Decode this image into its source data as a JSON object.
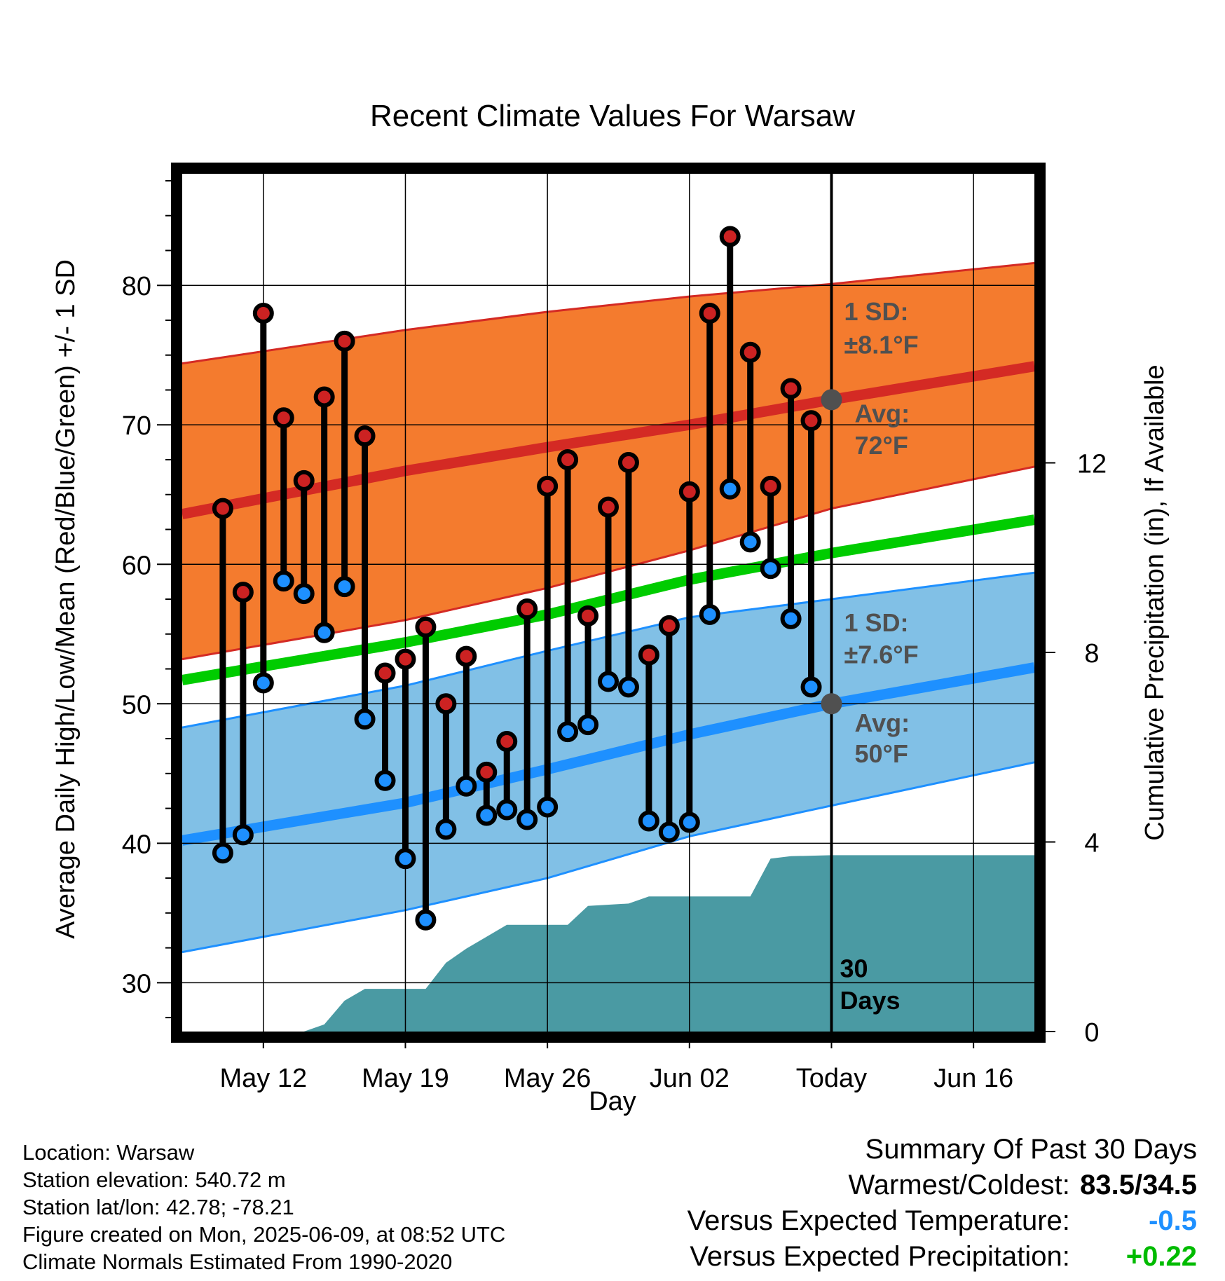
{
  "chart_data": {
    "type": "line",
    "title": "Recent Climate Values For Warsaw",
    "xlabel": "Day",
    "ylabel": "Average Daily High/Low/Mean (Red/Blue/Green) +/- 1 SD",
    "y2label": "Cumulative Precipitation (in), If Available",
    "xlim": [
      "2025-05-08",
      "2025-06-19"
    ],
    "ylim": [
      26.5,
      88
    ],
    "y2lim": [
      0,
      18.1
    ],
    "x_ticks": [
      {
        "date": "2025-05-12",
        "label": "May 12"
      },
      {
        "date": "2025-05-19",
        "label": "May 19"
      },
      {
        "date": "2025-05-26",
        "label": "May 26"
      },
      {
        "date": "2025-06-02",
        "label": "Jun 02"
      },
      {
        "date": "2025-06-09",
        "label": "Today"
      },
      {
        "date": "2025-06-16",
        "label": "Jun 16"
      }
    ],
    "y_ticks": [
      30,
      40,
      50,
      60,
      70,
      80
    ],
    "y2_ticks": [
      0,
      4,
      8,
      12
    ],
    "grid": true,
    "today": "2025-06-09",
    "today_label": [
      "30",
      "Days"
    ],
    "normals": {
      "x": [
        "2025-05-08",
        "2025-05-19",
        "2025-05-26",
        "2025-06-02",
        "2025-06-09",
        "2025-06-19"
      ],
      "avg_high": [
        63.6,
        66.7,
        68.4,
        70.0,
        71.8,
        74.2
      ],
      "high_upper": [
        74.4,
        76.8,
        78.1,
        79.2,
        80.1,
        81.6
      ],
      "high_lower": [
        53.2,
        56.0,
        58.3,
        61.0,
        64.0,
        67.0
      ],
      "avg_mean": [
        51.7,
        54.4,
        56.4,
        58.9,
        60.8,
        63.2
      ],
      "avg_low": [
        40.2,
        42.9,
        45.3,
        47.8,
        50.0,
        52.6
      ],
      "low_upper": [
        48.3,
        51.3,
        53.8,
        56.2,
        57.5,
        59.4
      ],
      "low_lower": [
        32.2,
        35.2,
        37.5,
        40.5,
        42.7,
        45.8
      ]
    },
    "series": [
      {
        "name": "High",
        "x": [
          "2025-05-10",
          "2025-05-11",
          "2025-05-12",
          "2025-05-13",
          "2025-05-14",
          "2025-05-15",
          "2025-05-16",
          "2025-05-17",
          "2025-05-18",
          "2025-05-19",
          "2025-05-20",
          "2025-05-21",
          "2025-05-22",
          "2025-05-23",
          "2025-05-24",
          "2025-05-25",
          "2025-05-26",
          "2025-05-27",
          "2025-05-28",
          "2025-05-29",
          "2025-05-30",
          "2025-05-31",
          "2025-06-01",
          "2025-06-02",
          "2025-06-03",
          "2025-06-04",
          "2025-06-05",
          "2025-06-06",
          "2025-06-07",
          "2025-06-08"
        ],
        "values": [
          64.0,
          58.0,
          78.0,
          70.5,
          66.0,
          72.0,
          76.0,
          69.2,
          52.2,
          53.2,
          55.5,
          50.0,
          53.4,
          45.1,
          47.3,
          56.8,
          65.6,
          67.5,
          56.3,
          64.1,
          67.3,
          53.5,
          55.6,
          65.2,
          78.0,
          83.5,
          75.2,
          65.6,
          72.6,
          70.3
        ]
      },
      {
        "name": "Low",
        "x": [
          "2025-05-10",
          "2025-05-11",
          "2025-05-12",
          "2025-05-13",
          "2025-05-14",
          "2025-05-15",
          "2025-05-16",
          "2025-05-17",
          "2025-05-18",
          "2025-05-19",
          "2025-05-20",
          "2025-05-21",
          "2025-05-22",
          "2025-05-23",
          "2025-05-24",
          "2025-05-25",
          "2025-05-26",
          "2025-05-27",
          "2025-05-28",
          "2025-05-29",
          "2025-05-30",
          "2025-05-31",
          "2025-06-01",
          "2025-06-02",
          "2025-06-03",
          "2025-06-04",
          "2025-06-05",
          "2025-06-06",
          "2025-06-07",
          "2025-06-08"
        ],
        "values": [
          39.3,
          40.6,
          51.5,
          58.8,
          57.9,
          55.1,
          58.4,
          48.9,
          44.5,
          38.9,
          34.5,
          41.0,
          44.1,
          42.0,
          42.4,
          41.7,
          42.6,
          48.0,
          48.5,
          51.6,
          51.2,
          41.6,
          40.8,
          41.5,
          56.4,
          65.4,
          61.6,
          59.7,
          56.1,
          51.2
        ]
      },
      {
        "name": "Cumulative Precipitation",
        "axis": "y2",
        "x": [
          "2025-05-13",
          "2025-05-14",
          "2025-05-15",
          "2025-05-16",
          "2025-05-17",
          "2025-05-19",
          "2025-05-20",
          "2025-05-21",
          "2025-05-22",
          "2025-05-23",
          "2025-05-24",
          "2025-05-27",
          "2025-05-28",
          "2025-05-30",
          "2025-05-31",
          "2025-06-05",
          "2025-06-06",
          "2025-06-07",
          "2025-06-09",
          "2025-06-19"
        ],
        "values": [
          0.0,
          0.0,
          0.15,
          0.65,
          0.9,
          0.9,
          0.9,
          1.45,
          1.75,
          2.0,
          2.25,
          2.25,
          2.65,
          2.7,
          2.85,
          2.85,
          3.65,
          3.7,
          3.72,
          3.72
        ]
      }
    ],
    "annotations": {
      "high_sd_label": "1 SD:",
      "high_sd_value": "±8.1°F",
      "high_avg_label": "Avg:",
      "high_avg_value": "72°F",
      "low_sd_label": "1 SD:",
      "low_sd_value": "±7.6°F",
      "low_avg_label": "Avg:",
      "low_avg_value": "50°F"
    },
    "colors": {
      "high_band": "#f47b2e",
      "high_line": "#d42a24",
      "low_band": "#81c0e6",
      "low_line": "#1e90ff",
      "mean_line": "#00cc00",
      "precip": "#4a9aa3",
      "high_dot": "#cc2222",
      "low_dot": "#1e90ff",
      "today_dot": "#505050",
      "annotation_text": "#505050"
    }
  },
  "footer": {
    "location": "Location: Warsaw",
    "elevation": "Station elevation: 540.72 m",
    "latlon": "Station lat/lon: 42.78; -78.21",
    "created": "Figure created on Mon, 2025-06-09, at 08:52 UTC",
    "normals": "Climate Normals Estimated From 1990-2020"
  },
  "summary": {
    "title": "Summary Of Past 30 Days",
    "warmest_label": "Warmest/Coldest:",
    "warmest_value": "83.5/34.5",
    "temp_label": "Versus Expected Temperature:",
    "temp_value": "-0.5",
    "temp_color": "#1e90ff",
    "precip_label": "Versus Expected Precipitation:",
    "precip_value": "+0.22",
    "precip_color": "#00bb00"
  }
}
